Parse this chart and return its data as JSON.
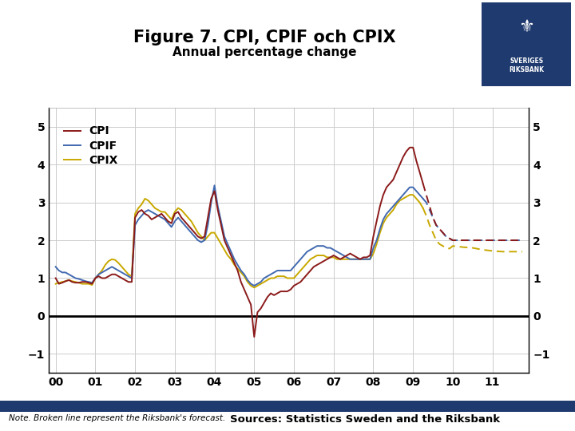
{
  "title": "Figure 7. CPI, CPIF och CPIX",
  "subtitle": "Annual percentage change",
  "ylim": [
    -1.5,
    5.5
  ],
  "yticks": [
    -1,
    0,
    1,
    2,
    3,
    4,
    5
  ],
  "xlim_start": 1999.83,
  "xlim_end": 2011.92,
  "xtick_labels": [
    "00",
    "01",
    "02",
    "03",
    "04",
    "05",
    "06",
    "07",
    "08",
    "09",
    "10",
    "11"
  ],
  "xtick_positions": [
    2000,
    2001,
    2002,
    2003,
    2004,
    2005,
    2006,
    2007,
    2008,
    2009,
    2010,
    2011
  ],
  "cpi_color": "#8B1A1A",
  "cpif_color": "#4169B0",
  "cpix_color": "#C8A800",
  "forecast_start": 2009.25,
  "note_text": "Note. Broken line represent the Riksbank's forecast.",
  "source_text": "Sources: Statistics Sweden and the Riksbank",
  "bar_color": "#1F3A6E",
  "logo_color": "#1F3A6E",
  "cpi_data": [
    [
      2000.0,
      1.0
    ],
    [
      2000.083,
      0.85
    ],
    [
      2000.167,
      0.88
    ],
    [
      2000.25,
      0.92
    ],
    [
      2000.333,
      0.95
    ],
    [
      2000.417,
      0.9
    ],
    [
      2000.5,
      0.88
    ],
    [
      2000.583,
      0.88
    ],
    [
      2000.667,
      0.9
    ],
    [
      2000.75,
      0.9
    ],
    [
      2000.833,
      0.88
    ],
    [
      2000.917,
      0.85
    ],
    [
      2001.0,
      1.0
    ],
    [
      2001.083,
      1.05
    ],
    [
      2001.167,
      1.0
    ],
    [
      2001.25,
      1.0
    ],
    [
      2001.333,
      1.05
    ],
    [
      2001.417,
      1.1
    ],
    [
      2001.5,
      1.1
    ],
    [
      2001.583,
      1.05
    ],
    [
      2001.667,
      1.0
    ],
    [
      2001.75,
      0.95
    ],
    [
      2001.833,
      0.9
    ],
    [
      2001.917,
      0.9
    ],
    [
      2002.0,
      2.6
    ],
    [
      2002.083,
      2.75
    ],
    [
      2002.167,
      2.8
    ],
    [
      2002.25,
      2.7
    ],
    [
      2002.333,
      2.65
    ],
    [
      2002.417,
      2.55
    ],
    [
      2002.5,
      2.6
    ],
    [
      2002.583,
      2.65
    ],
    [
      2002.667,
      2.7
    ],
    [
      2002.75,
      2.6
    ],
    [
      2002.833,
      2.5
    ],
    [
      2002.917,
      2.45
    ],
    [
      2003.0,
      2.7
    ],
    [
      2003.083,
      2.75
    ],
    [
      2003.167,
      2.6
    ],
    [
      2003.25,
      2.5
    ],
    [
      2003.333,
      2.4
    ],
    [
      2003.417,
      2.3
    ],
    [
      2003.5,
      2.2
    ],
    [
      2003.583,
      2.1
    ],
    [
      2003.667,
      2.05
    ],
    [
      2003.75,
      2.1
    ],
    [
      2003.833,
      2.6
    ],
    [
      2003.917,
      3.1
    ],
    [
      2004.0,
      3.3
    ],
    [
      2004.083,
      2.8
    ],
    [
      2004.167,
      2.4
    ],
    [
      2004.25,
      2.0
    ],
    [
      2004.333,
      1.8
    ],
    [
      2004.417,
      1.6
    ],
    [
      2004.5,
      1.4
    ],
    [
      2004.583,
      1.2
    ],
    [
      2004.667,
      0.9
    ],
    [
      2004.75,
      0.7
    ],
    [
      2004.833,
      0.5
    ],
    [
      2004.917,
      0.3
    ],
    [
      2005.0,
      -0.55
    ],
    [
      2005.083,
      0.1
    ],
    [
      2005.167,
      0.2
    ],
    [
      2005.25,
      0.35
    ],
    [
      2005.333,
      0.5
    ],
    [
      2005.417,
      0.6
    ],
    [
      2005.5,
      0.55
    ],
    [
      2005.583,
      0.6
    ],
    [
      2005.667,
      0.65
    ],
    [
      2005.75,
      0.65
    ],
    [
      2005.833,
      0.65
    ],
    [
      2005.917,
      0.7
    ],
    [
      2006.0,
      0.8
    ],
    [
      2006.083,
      0.85
    ],
    [
      2006.167,
      0.9
    ],
    [
      2006.25,
      1.0
    ],
    [
      2006.333,
      1.1
    ],
    [
      2006.417,
      1.2
    ],
    [
      2006.5,
      1.3
    ],
    [
      2006.583,
      1.35
    ],
    [
      2006.667,
      1.4
    ],
    [
      2006.75,
      1.45
    ],
    [
      2006.833,
      1.5
    ],
    [
      2006.917,
      1.55
    ],
    [
      2007.0,
      1.6
    ],
    [
      2007.083,
      1.55
    ],
    [
      2007.167,
      1.5
    ],
    [
      2007.25,
      1.55
    ],
    [
      2007.333,
      1.6
    ],
    [
      2007.417,
      1.65
    ],
    [
      2007.5,
      1.6
    ],
    [
      2007.583,
      1.55
    ],
    [
      2007.667,
      1.5
    ],
    [
      2007.75,
      1.55
    ],
    [
      2007.833,
      1.55
    ],
    [
      2007.917,
      1.6
    ],
    [
      2008.0,
      2.1
    ],
    [
      2008.083,
      2.5
    ],
    [
      2008.167,
      2.9
    ],
    [
      2008.25,
      3.2
    ],
    [
      2008.333,
      3.4
    ],
    [
      2008.417,
      3.5
    ],
    [
      2008.5,
      3.6
    ],
    [
      2008.583,
      3.8
    ],
    [
      2008.667,
      4.0
    ],
    [
      2008.75,
      4.2
    ],
    [
      2008.833,
      4.35
    ],
    [
      2008.917,
      4.45
    ],
    [
      2009.0,
      4.45
    ],
    [
      2009.083,
      4.1
    ],
    [
      2009.167,
      3.8
    ],
    [
      2009.25,
      3.5
    ],
    [
      2009.333,
      3.2
    ],
    [
      2009.417,
      2.9
    ],
    [
      2009.5,
      2.6
    ],
    [
      2009.583,
      2.4
    ],
    [
      2009.667,
      2.3
    ],
    [
      2009.75,
      2.2
    ],
    [
      2009.833,
      2.1
    ],
    [
      2009.917,
      2.05
    ],
    [
      2010.0,
      2.0
    ],
    [
      2010.25,
      2.0
    ],
    [
      2010.5,
      2.0
    ],
    [
      2010.75,
      2.0
    ],
    [
      2011.0,
      2.0
    ],
    [
      2011.25,
      2.0
    ],
    [
      2011.5,
      2.0
    ],
    [
      2011.75,
      2.0
    ]
  ],
  "cpif_data": [
    [
      2000.0,
      1.3
    ],
    [
      2000.083,
      1.2
    ],
    [
      2000.167,
      1.15
    ],
    [
      2000.25,
      1.15
    ],
    [
      2000.333,
      1.1
    ],
    [
      2000.417,
      1.05
    ],
    [
      2000.5,
      1.0
    ],
    [
      2000.583,
      0.98
    ],
    [
      2000.667,
      0.95
    ],
    [
      2000.75,
      0.92
    ],
    [
      2000.833,
      0.9
    ],
    [
      2000.917,
      0.88
    ],
    [
      2001.0,
      1.0
    ],
    [
      2001.083,
      1.1
    ],
    [
      2001.167,
      1.15
    ],
    [
      2001.25,
      1.2
    ],
    [
      2001.333,
      1.25
    ],
    [
      2001.417,
      1.3
    ],
    [
      2001.5,
      1.25
    ],
    [
      2001.583,
      1.2
    ],
    [
      2001.667,
      1.15
    ],
    [
      2001.75,
      1.1
    ],
    [
      2001.833,
      1.05
    ],
    [
      2001.917,
      1.0
    ],
    [
      2002.0,
      2.4
    ],
    [
      2002.083,
      2.55
    ],
    [
      2002.167,
      2.65
    ],
    [
      2002.25,
      2.75
    ],
    [
      2002.333,
      2.8
    ],
    [
      2002.417,
      2.75
    ],
    [
      2002.5,
      2.7
    ],
    [
      2002.583,
      2.65
    ],
    [
      2002.667,
      2.6
    ],
    [
      2002.75,
      2.55
    ],
    [
      2002.833,
      2.45
    ],
    [
      2002.917,
      2.35
    ],
    [
      2003.0,
      2.5
    ],
    [
      2003.083,
      2.6
    ],
    [
      2003.167,
      2.5
    ],
    [
      2003.25,
      2.4
    ],
    [
      2003.333,
      2.3
    ],
    [
      2003.417,
      2.2
    ],
    [
      2003.5,
      2.1
    ],
    [
      2003.583,
      2.0
    ],
    [
      2003.667,
      1.95
    ],
    [
      2003.75,
      2.0
    ],
    [
      2003.833,
      2.4
    ],
    [
      2003.917,
      3.0
    ],
    [
      2004.0,
      3.45
    ],
    [
      2004.083,
      2.9
    ],
    [
      2004.167,
      2.5
    ],
    [
      2004.25,
      2.1
    ],
    [
      2004.333,
      1.9
    ],
    [
      2004.417,
      1.7
    ],
    [
      2004.5,
      1.5
    ],
    [
      2004.583,
      1.35
    ],
    [
      2004.667,
      1.2
    ],
    [
      2004.75,
      1.1
    ],
    [
      2004.833,
      0.95
    ],
    [
      2004.917,
      0.85
    ],
    [
      2005.0,
      0.8
    ],
    [
      2005.083,
      0.85
    ],
    [
      2005.167,
      0.9
    ],
    [
      2005.25,
      1.0
    ],
    [
      2005.333,
      1.05
    ],
    [
      2005.417,
      1.1
    ],
    [
      2005.5,
      1.15
    ],
    [
      2005.583,
      1.2
    ],
    [
      2005.667,
      1.2
    ],
    [
      2005.75,
      1.2
    ],
    [
      2005.833,
      1.2
    ],
    [
      2005.917,
      1.2
    ],
    [
      2006.0,
      1.3
    ],
    [
      2006.083,
      1.4
    ],
    [
      2006.167,
      1.5
    ],
    [
      2006.25,
      1.6
    ],
    [
      2006.333,
      1.7
    ],
    [
      2006.417,
      1.75
    ],
    [
      2006.5,
      1.8
    ],
    [
      2006.583,
      1.85
    ],
    [
      2006.667,
      1.85
    ],
    [
      2006.75,
      1.85
    ],
    [
      2006.833,
      1.8
    ],
    [
      2006.917,
      1.8
    ],
    [
      2007.0,
      1.75
    ],
    [
      2007.083,
      1.7
    ],
    [
      2007.167,
      1.65
    ],
    [
      2007.25,
      1.6
    ],
    [
      2007.333,
      1.55
    ],
    [
      2007.417,
      1.5
    ],
    [
      2007.5,
      1.5
    ],
    [
      2007.583,
      1.5
    ],
    [
      2007.667,
      1.5
    ],
    [
      2007.75,
      1.5
    ],
    [
      2007.833,
      1.5
    ],
    [
      2007.917,
      1.5
    ],
    [
      2008.0,
      1.8
    ],
    [
      2008.083,
      2.0
    ],
    [
      2008.167,
      2.3
    ],
    [
      2008.25,
      2.55
    ],
    [
      2008.333,
      2.7
    ],
    [
      2008.417,
      2.8
    ],
    [
      2008.5,
      2.9
    ],
    [
      2008.583,
      3.0
    ],
    [
      2008.667,
      3.1
    ],
    [
      2008.75,
      3.2
    ],
    [
      2008.833,
      3.3
    ],
    [
      2008.917,
      3.4
    ],
    [
      2009.0,
      3.4
    ],
    [
      2009.083,
      3.3
    ],
    [
      2009.167,
      3.2
    ],
    [
      2009.25,
      3.1
    ],
    [
      2009.333,
      3.0
    ],
    [
      2009.417,
      2.8
    ],
    [
      2009.5,
      2.6
    ],
    [
      2009.583,
      2.4
    ],
    [
      2009.667,
      2.3
    ],
    [
      2009.75,
      2.2
    ],
    [
      2009.833,
      2.1
    ],
    [
      2009.917,
      2.05
    ],
    [
      2010.0,
      2.0
    ],
    [
      2010.25,
      2.0
    ],
    [
      2010.5,
      2.0
    ],
    [
      2010.75,
      2.0
    ],
    [
      2011.0,
      2.0
    ],
    [
      2011.25,
      2.0
    ],
    [
      2011.5,
      2.0
    ],
    [
      2011.75,
      2.0
    ]
  ],
  "cpix_data": [
    [
      2000.0,
      0.85
    ],
    [
      2000.083,
      0.88
    ],
    [
      2000.167,
      0.9
    ],
    [
      2000.25,
      0.92
    ],
    [
      2000.333,
      0.95
    ],
    [
      2000.417,
      0.92
    ],
    [
      2000.5,
      0.9
    ],
    [
      2000.583,
      0.88
    ],
    [
      2000.667,
      0.85
    ],
    [
      2000.75,
      0.85
    ],
    [
      2000.833,
      0.85
    ],
    [
      2000.917,
      0.82
    ],
    [
      2001.0,
      1.0
    ],
    [
      2001.083,
      1.1
    ],
    [
      2001.167,
      1.2
    ],
    [
      2001.25,
      1.35
    ],
    [
      2001.333,
      1.45
    ],
    [
      2001.417,
      1.5
    ],
    [
      2001.5,
      1.48
    ],
    [
      2001.583,
      1.4
    ],
    [
      2001.667,
      1.3
    ],
    [
      2001.75,
      1.2
    ],
    [
      2001.833,
      1.1
    ],
    [
      2001.917,
      1.05
    ],
    [
      2002.0,
      2.7
    ],
    [
      2002.083,
      2.85
    ],
    [
      2002.167,
      2.95
    ],
    [
      2002.25,
      3.1
    ],
    [
      2002.333,
      3.05
    ],
    [
      2002.417,
      2.95
    ],
    [
      2002.5,
      2.85
    ],
    [
      2002.583,
      2.8
    ],
    [
      2002.667,
      2.75
    ],
    [
      2002.75,
      2.75
    ],
    [
      2002.833,
      2.65
    ],
    [
      2002.917,
      2.55
    ],
    [
      2003.0,
      2.75
    ],
    [
      2003.083,
      2.85
    ],
    [
      2003.167,
      2.8
    ],
    [
      2003.25,
      2.7
    ],
    [
      2003.333,
      2.6
    ],
    [
      2003.417,
      2.5
    ],
    [
      2003.5,
      2.35
    ],
    [
      2003.583,
      2.2
    ],
    [
      2003.667,
      2.1
    ],
    [
      2003.75,
      2.0
    ],
    [
      2003.833,
      2.1
    ],
    [
      2003.917,
      2.2
    ],
    [
      2004.0,
      2.2
    ],
    [
      2004.083,
      2.05
    ],
    [
      2004.167,
      1.9
    ],
    [
      2004.25,
      1.75
    ],
    [
      2004.333,
      1.6
    ],
    [
      2004.417,
      1.5
    ],
    [
      2004.5,
      1.35
    ],
    [
      2004.583,
      1.25
    ],
    [
      2004.667,
      1.15
    ],
    [
      2004.75,
      1.05
    ],
    [
      2004.833,
      0.9
    ],
    [
      2004.917,
      0.8
    ],
    [
      2005.0,
      0.75
    ],
    [
      2005.083,
      0.8
    ],
    [
      2005.167,
      0.85
    ],
    [
      2005.25,
      0.9
    ],
    [
      2005.333,
      0.95
    ],
    [
      2005.417,
      1.0
    ],
    [
      2005.5,
      1.0
    ],
    [
      2005.583,
      1.05
    ],
    [
      2005.667,
      1.05
    ],
    [
      2005.75,
      1.05
    ],
    [
      2005.833,
      1.0
    ],
    [
      2005.917,
      1.0
    ],
    [
      2006.0,
      1.0
    ],
    [
      2006.083,
      1.1
    ],
    [
      2006.167,
      1.2
    ],
    [
      2006.25,
      1.3
    ],
    [
      2006.333,
      1.4
    ],
    [
      2006.417,
      1.5
    ],
    [
      2006.5,
      1.55
    ],
    [
      2006.583,
      1.6
    ],
    [
      2006.667,
      1.6
    ],
    [
      2006.75,
      1.6
    ],
    [
      2006.833,
      1.55
    ],
    [
      2006.917,
      1.55
    ],
    [
      2007.0,
      1.55
    ],
    [
      2007.083,
      1.5
    ],
    [
      2007.167,
      1.5
    ],
    [
      2007.25,
      1.5
    ],
    [
      2007.333,
      1.5
    ],
    [
      2007.417,
      1.5
    ],
    [
      2007.5,
      1.5
    ],
    [
      2007.583,
      1.5
    ],
    [
      2007.667,
      1.5
    ],
    [
      2007.75,
      1.5
    ],
    [
      2007.833,
      1.5
    ],
    [
      2007.917,
      1.5
    ],
    [
      2008.0,
      1.65
    ],
    [
      2008.083,
      1.9
    ],
    [
      2008.167,
      2.2
    ],
    [
      2008.25,
      2.45
    ],
    [
      2008.333,
      2.6
    ],
    [
      2008.417,
      2.7
    ],
    [
      2008.5,
      2.8
    ],
    [
      2008.583,
      2.95
    ],
    [
      2008.667,
      3.05
    ],
    [
      2008.75,
      3.1
    ],
    [
      2008.833,
      3.15
    ],
    [
      2008.917,
      3.2
    ],
    [
      2009.0,
      3.2
    ],
    [
      2009.083,
      3.1
    ],
    [
      2009.167,
      3.0
    ],
    [
      2009.25,
      2.85
    ],
    [
      2009.333,
      2.65
    ],
    [
      2009.417,
      2.4
    ],
    [
      2009.5,
      2.2
    ],
    [
      2009.583,
      2.0
    ],
    [
      2009.667,
      1.9
    ],
    [
      2009.75,
      1.85
    ],
    [
      2009.833,
      1.8
    ],
    [
      2009.917,
      1.78
    ],
    [
      2010.0,
      1.85
    ],
    [
      2010.25,
      1.82
    ],
    [
      2010.5,
      1.8
    ],
    [
      2010.75,
      1.75
    ],
    [
      2011.0,
      1.72
    ],
    [
      2011.25,
      1.7
    ],
    [
      2011.5,
      1.7
    ],
    [
      2011.75,
      1.7
    ]
  ]
}
